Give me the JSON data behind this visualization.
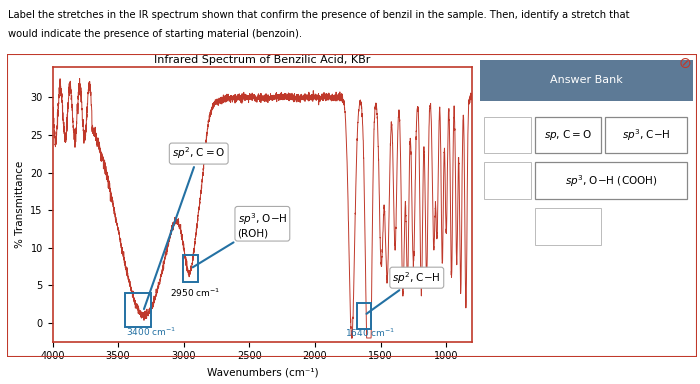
{
  "title": "Infrared Spectrum of Benzilic Acid, KBr",
  "xlabel": "Wavenumbers (cm⁻¹)",
  "ylabel": "% Transmittance",
  "question_line1": "Label the stretches in the IR spectrum shown that confirm the presence of benzil in the sample. Then, identify a stretch that",
  "question_line2": "would indicate the presence of starting material (benzoin).",
  "xlim": [
    4000,
    800
  ],
  "ylim": [
    -2.5,
    34
  ],
  "yticks": [
    0,
    5,
    10,
    15,
    20,
    25,
    30
  ],
  "xticks": [
    4000,
    3500,
    3000,
    2500,
    2000,
    1500,
    1000
  ],
  "spectrum_color": "#c0392b",
  "annotation_color": "#2471a3",
  "bg_color": "#ffffff",
  "plot_bg": "#ffffff",
  "border_color": "#c0392b",
  "answer_bank_header_color": "#5d7a96",
  "answer_bank_bg": "#eaeef2"
}
